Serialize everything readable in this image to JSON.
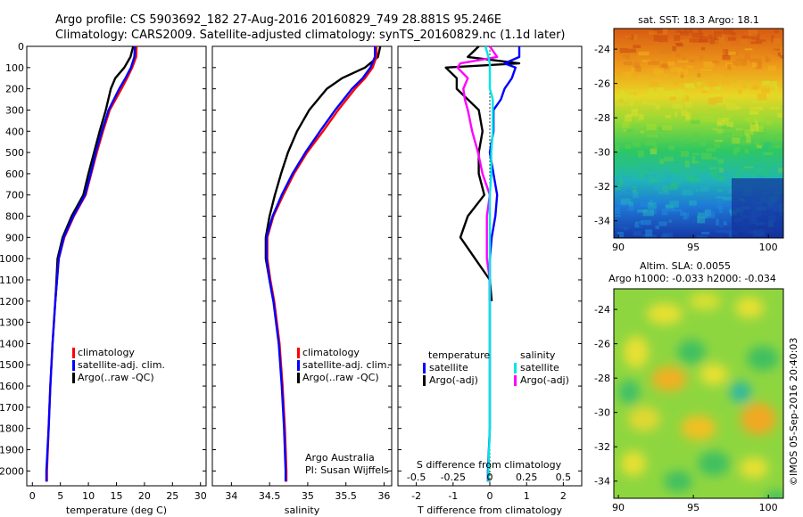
{
  "header": {
    "line1": "Argo profile: CS 5903692_182 27-Aug-2016 20160829_749 28.881S 95.246E",
    "line2": "Climatology: CARS2009. Satellite-adjusted climatology: synTS_20160829.nc (1.1d later)"
  },
  "side_stamp": "©IMOS 05-Sep-2016 20:40:03",
  "colors": {
    "climatology": "#ff0000",
    "satellite": "#0000ff",
    "argo": "#000000",
    "salinity_satellite": "#00e5e5",
    "salinity_argo": "#ff00ff"
  },
  "chart_data": [
    {
      "type": "line",
      "name": "temperature",
      "xlabel": "temperature (deg C)",
      "xlim": [
        -1,
        31
      ],
      "ylim": [
        2070,
        0
      ],
      "xticks": [
        0,
        5,
        10,
        15,
        20,
        25,
        30
      ],
      "yticks": [
        0,
        100,
        200,
        300,
        400,
        500,
        600,
        700,
        800,
        900,
        1000,
        1100,
        1200,
        1300,
        1400,
        1500,
        1600,
        1700,
        1800,
        1900,
        2000
      ],
      "legend": [
        "climatology",
        "satellite-adj. clim.",
        "Argo(..raw -QC)"
      ],
      "depth": [
        0,
        50,
        100,
        150,
        200,
        300,
        400,
        500,
        600,
        700,
        800,
        900,
        1000,
        1100,
        1200,
        1400,
        1600,
        1800,
        2000,
        2050
      ],
      "series": [
        {
          "name": "climatology",
          "values": [
            18.6,
            18.5,
            17.8,
            16.9,
            15.9,
            13.8,
            12.6,
            11.5,
            10.5,
            9.5,
            7.4,
            5.7,
            4.7,
            4.4,
            4.1,
            3.6,
            3.2,
            2.9,
            2.6,
            2.6
          ]
        },
        {
          "name": "satellite-adj. clim.",
          "values": [
            18.3,
            18.2,
            17.6,
            16.6,
            15.5,
            13.6,
            12.4,
            11.3,
            10.4,
            9.4,
            7.3,
            5.6,
            4.7,
            4.4,
            4.1,
            3.6,
            3.2,
            2.9,
            2.5,
            2.5
          ]
        },
        {
          "name": "Argo(..raw -QC)",
          "values": [
            18.0,
            17.5,
            16.4,
            14.8,
            14.0,
            13.1,
            12.0,
            11.0,
            10.0,
            9.1,
            7.0,
            5.4,
            4.5,
            4.3,
            4.1
          ]
        }
      ]
    },
    {
      "type": "line",
      "name": "salinity",
      "xlabel": "salinity",
      "xlim": [
        33.75,
        36.1
      ],
      "ylim": [
        2070,
        0
      ],
      "xticks": [
        34,
        34.5,
        35,
        35.5,
        36
      ],
      "legend": [
        "climatology",
        "satellite-adj. clim.",
        "Argo(..raw -QC)"
      ],
      "text_lines": [
        "Argo Australia",
        "PI: Susan Wijffels"
      ],
      "depth": [
        0,
        50,
        100,
        150,
        200,
        300,
        400,
        500,
        600,
        700,
        800,
        900,
        1000,
        1100,
        1200,
        1400,
        1600,
        1800,
        2000,
        2050
      ],
      "series": [
        {
          "name": "climatology",
          "values": [
            35.9,
            35.9,
            35.85,
            35.75,
            35.62,
            35.4,
            35.2,
            34.99,
            34.82,
            34.68,
            34.55,
            34.47,
            34.47,
            34.51,
            34.56,
            34.63,
            34.67,
            34.7,
            34.72,
            34.72
          ]
        },
        {
          "name": "satellite-adj. clim.",
          "values": [
            35.88,
            35.88,
            35.82,
            35.72,
            35.58,
            35.36,
            35.16,
            34.97,
            34.8,
            34.66,
            34.54,
            34.46,
            34.46,
            34.5,
            34.55,
            34.62,
            34.66,
            34.69,
            34.71,
            34.71
          ]
        },
        {
          "name": "Argo(..raw -QC)",
          "values": [
            35.95,
            35.92,
            35.75,
            35.45,
            35.25,
            35.02,
            34.86,
            34.74,
            34.65,
            34.57,
            34.5,
            34.45,
            34.45,
            34.5,
            34.55
          ]
        }
      ]
    },
    {
      "type": "line",
      "name": "difference",
      "xlabel": "T difference from climatology",
      "xlabel_top": "S difference from climatology",
      "xlim": [
        -2.5,
        2.5
      ],
      "ylim": [
        2070,
        0
      ],
      "xticks": [
        -2,
        -1,
        0,
        1,
        2
      ],
      "xticks_top": [
        -0.5,
        -0.25,
        0,
        0.25,
        0.5
      ],
      "xticks_top_labels": [
        "-0.5",
        "-0.25",
        "0",
        "0.25",
        "0.5"
      ],
      "legend_titles": [
        "temperature",
        "salinity"
      ],
      "legend": [
        "satellite",
        "Argo(-adj)",
        "satellite",
        "Argo(-adj)"
      ],
      "depth": [
        0,
        50,
        80,
        100,
        150,
        200,
        250,
        300,
        400,
        500,
        600,
        700,
        800,
        900,
        1000,
        1100,
        1200,
        1400,
        1600,
        1800,
        2000,
        2050
      ],
      "series": [
        {
          "name": "temperature satellite",
          "values": [
            0.8,
            0.8,
            0.4,
            0.7,
            0.6,
            0.4,
            0.3,
            0.1,
            0.1,
            0.0,
            0.1,
            0.2,
            0.15,
            0.05,
            0.0,
            0.0,
            0.0,
            0.0,
            0.0,
            0.0,
            -0.05,
            -0.05
          ]
        },
        {
          "name": "temperature Argo(-adj)",
          "values": [
            -0.3,
            -0.6,
            0.8,
            -1.2,
            -0.9,
            -0.9,
            -0.6,
            -0.3,
            -0.2,
            -0.3,
            -0.3,
            -0.15,
            -0.6,
            -0.8,
            -0.4,
            0.0,
            0.05
          ]
        },
        {
          "name": "salinity satellite",
          "values": [
            -0.03,
            -0.01,
            0.0,
            0.0,
            0.0,
            0.0,
            0.02,
            0.02,
            0.02,
            0.01,
            0.01,
            0.0,
            0.0,
            0.0,
            0.0,
            0.0,
            0.0,
            0.0,
            0.0,
            0.0,
            -0.01,
            -0.01
          ]
        },
        {
          "name": "salinity Argo(-adj)",
          "values": [
            0.0,
            0.05,
            -0.2,
            -0.22,
            -0.15,
            -0.18,
            -0.17,
            -0.15,
            -0.12,
            -0.08,
            -0.05,
            0.0,
            -0.02,
            -0.02,
            -0.02,
            0.0,
            0.0
          ]
        }
      ]
    },
    {
      "type": "heatmap",
      "name": "sst",
      "title": "sat. SST: 18.3 Argo: 18.1",
      "xlim": [
        89.7,
        101
      ],
      "ylim": [
        -35,
        -22.8
      ],
      "xticks": [
        90,
        95,
        100
      ],
      "yticks": [
        -24,
        -26,
        -28,
        -30,
        -32,
        -34
      ]
    },
    {
      "type": "heatmap",
      "name": "sla",
      "title_lines": [
        "Altim. SLA: 0.0055",
        "Argo h1000: -0.033 h2000: -0.034"
      ],
      "xlim": [
        89.7,
        101
      ],
      "ylim": [
        -35,
        -22.8
      ],
      "xticks": [
        90,
        95,
        100
      ],
      "yticks": [
        -24,
        -26,
        -28,
        -30,
        -32,
        -34
      ]
    }
  ]
}
